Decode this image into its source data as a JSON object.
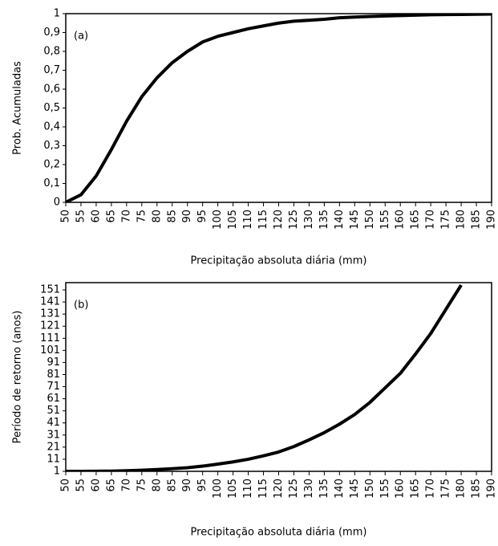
{
  "chart_data": [
    {
      "type": "line",
      "annotation": "(a)",
      "ylabel": "Prob. Acumuladas",
      "xlabel": "Precipitação absoluta diária (mm)",
      "x": [
        50,
        55,
        60,
        65,
        70,
        75,
        80,
        85,
        90,
        95,
        100,
        105,
        110,
        115,
        120,
        125,
        130,
        135,
        140,
        145,
        150,
        155,
        160,
        165,
        170,
        175,
        180,
        185,
        190
      ],
      "series": [
        {
          "color": "#000000",
          "values": [
            0.0,
            0.04,
            0.14,
            0.28,
            0.43,
            0.56,
            0.66,
            0.74,
            0.8,
            0.85,
            0.88,
            0.9,
            0.92,
            0.935,
            0.95,
            0.96,
            0.965,
            0.97,
            0.978,
            0.982,
            0.985,
            0.988,
            0.99,
            0.992,
            0.994,
            0.995,
            0.996,
            0.997,
            0.998
          ]
        }
      ],
      "xlim": [
        50,
        190
      ],
      "xticks": [
        50,
        55,
        60,
        65,
        70,
        75,
        80,
        85,
        90,
        95,
        100,
        105,
        110,
        115,
        120,
        125,
        130,
        135,
        140,
        145,
        150,
        155,
        160,
        165,
        170,
        175,
        180,
        185,
        190
      ],
      "ylim": [
        0,
        1
      ],
      "yticks": [
        0,
        {
          "value": 0.1,
          "label": "0,1"
        },
        {
          "value": 0.2,
          "label": "0,2"
        },
        {
          "value": 0.3,
          "label": "0,3"
        },
        {
          "value": 0.4,
          "label": "0,4"
        },
        {
          "value": 0.5,
          "label": "0,5"
        },
        {
          "value": 0.6,
          "label": "0,6"
        },
        {
          "value": 0.7,
          "label": "0,7"
        },
        {
          "value": 0.8,
          "label": "0,8"
        },
        {
          "value": 0.9,
          "label": "0,9"
        },
        1
      ]
    },
    {
      "type": "line",
      "annotation": "(b)",
      "ylabel": "Período de retorno (anos)",
      "xlabel": "Precipitação absoluta diária (mm)",
      "x": [
        50,
        55,
        60,
        65,
        70,
        75,
        80,
        85,
        90,
        95,
        100,
        105,
        110,
        115,
        120,
        125,
        130,
        135,
        140,
        145,
        150,
        155,
        160,
        165,
        170,
        175,
        180,
        185,
        190
      ],
      "series": [
        {
          "color": "#000000",
          "values": [
            1,
            1,
            1.1,
            1.2,
            1.5,
            1.9,
            2.5,
            3.2,
            4,
            5.3,
            7,
            8.8,
            11,
            13.8,
            17,
            21.5,
            27,
            33,
            40,
            48,
            58,
            70,
            82,
            98,
            115,
            135,
            155,
            null,
            null
          ]
        }
      ],
      "xlim": [
        50,
        190
      ],
      "xticks": [
        50,
        55,
        60,
        65,
        70,
        75,
        80,
        85,
        90,
        95,
        100,
        105,
        110,
        115,
        120,
        125,
        130,
        135,
        140,
        145,
        150,
        155,
        160,
        165,
        170,
        175,
        180,
        185,
        190
      ],
      "ylim": [
        1,
        157
      ],
      "yticks": [
        1,
        11,
        21,
        31,
        41,
        51,
        61,
        71,
        81,
        91,
        101,
        111,
        121,
        131,
        141,
        151
      ]
    }
  ]
}
